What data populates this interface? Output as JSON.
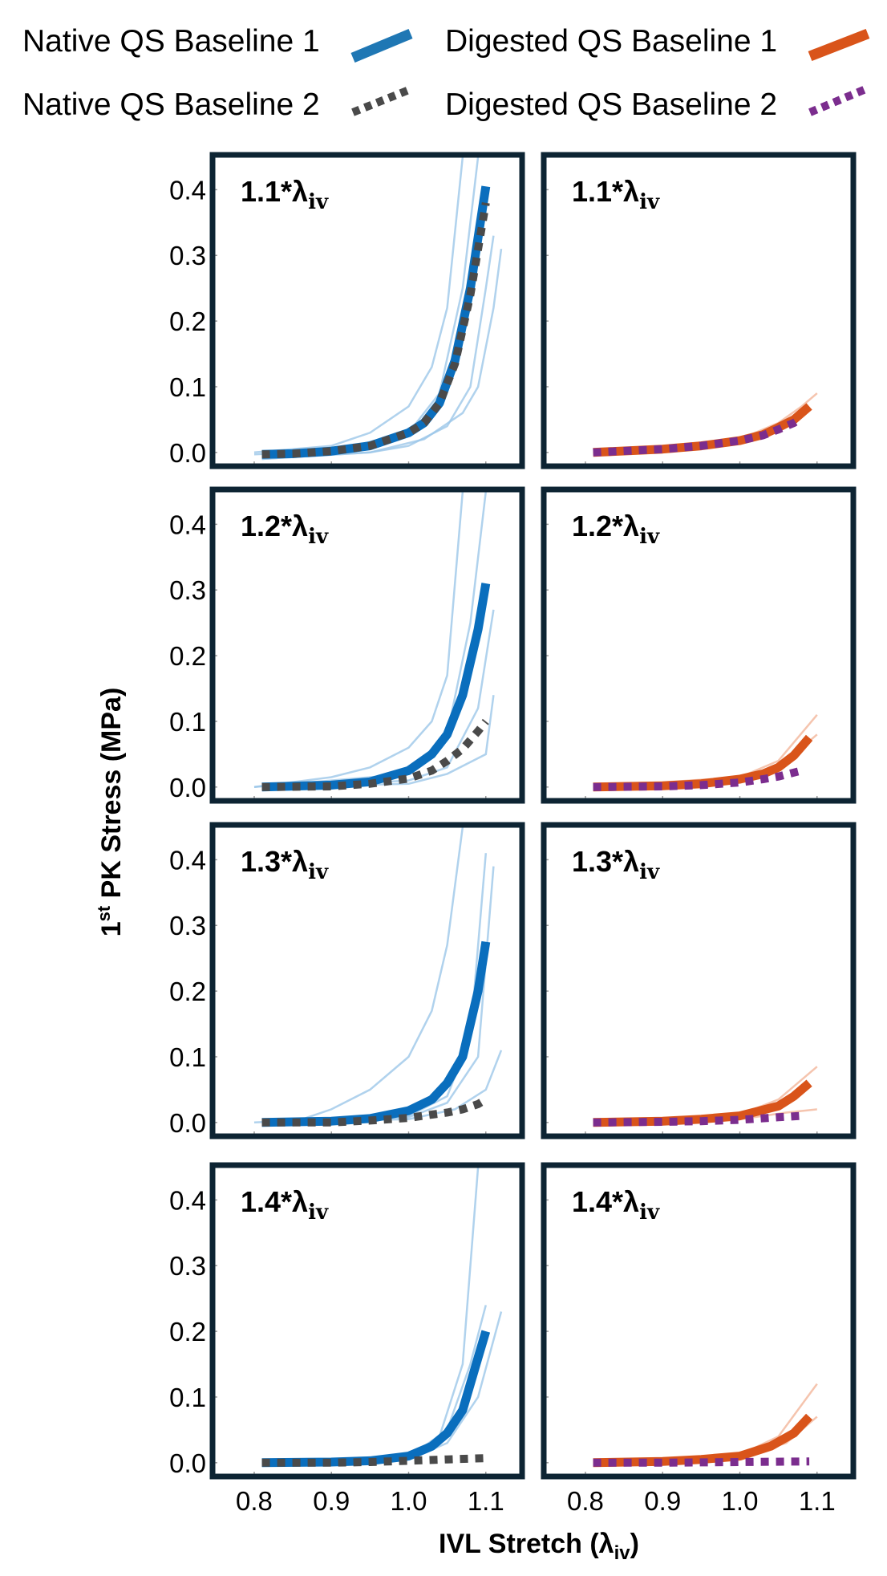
{
  "chart_data": {
    "type": "line",
    "layout": "4 rows x 2 columns of panels",
    "legend": {
      "placement": "top",
      "entries": [
        {
          "name": "Native QS Baseline 1",
          "color": "#1f77b4",
          "style": "solid"
        },
        {
          "name": "Digested QS Baseline 1",
          "color": "#d9541a",
          "style": "solid"
        },
        {
          "name": "Native QS Baseline 2",
          "color": "#4a4a4a",
          "style": "dotted"
        },
        {
          "name": "Digested QS Baseline 2",
          "color": "#7b2d8e",
          "style": "dotted"
        }
      ]
    },
    "xlabel": {
      "main": "IVL Stretch (λ",
      "sub": "iv",
      "close": ")"
    },
    "ylabel": {
      "pre": "1",
      "sup": "st",
      "main": " PK Stress (MPa)"
    },
    "xlim": [
      0.746,
      1.147
    ],
    "ylim": [
      -0.021,
      0.453
    ],
    "xticks": [
      "0.8",
      "0.9",
      "1.0",
      "1.1"
    ],
    "yticks": [
      "0.0",
      "0.1",
      "0.2",
      "0.3",
      "0.4"
    ],
    "grid": false,
    "colors": {
      "native1": "#0a6ebd",
      "native2": "#4a4a4a",
      "digested1": "#d9541a",
      "digested2": "#7b2d8e",
      "native_specimen": "#9cc7e8",
      "digested_specimen": "#f2b59a",
      "frame": "#0d2433"
    },
    "panels": [
      {
        "label": "1.1*λ",
        "label_sub": "iv",
        "group": "native",
        "series1": [
          [
            0.81,
            -0.003
          ],
          [
            0.85,
            -0.002
          ],
          [
            0.9,
            0.002
          ],
          [
            0.95,
            0.01
          ],
          [
            1.0,
            0.03
          ],
          [
            1.02,
            0.045
          ],
          [
            1.04,
            0.075
          ],
          [
            1.06,
            0.14
          ],
          [
            1.08,
            0.25
          ],
          [
            1.1,
            0.405
          ]
        ],
        "series2": [
          [
            0.81,
            -0.003
          ],
          [
            0.85,
            -0.002
          ],
          [
            0.9,
            0.002
          ],
          [
            0.95,
            0.01
          ],
          [
            1.0,
            0.03
          ],
          [
            1.02,
            0.045
          ],
          [
            1.04,
            0.075
          ],
          [
            1.06,
            0.135
          ],
          [
            1.08,
            0.24
          ],
          [
            1.1,
            0.38
          ]
        ],
        "specimens": [
          [
            [
              0.8,
              0
            ],
            [
              0.9,
              0.01
            ],
            [
              0.95,
              0.03
            ],
            [
              1.0,
              0.07
            ],
            [
              1.03,
              0.13
            ],
            [
              1.05,
              0.22
            ],
            [
              1.07,
              0.45
            ]
          ],
          [
            [
              0.8,
              -0.003
            ],
            [
              0.9,
              0.002
            ],
            [
              1.0,
              0.03
            ],
            [
              1.04,
              0.09
            ],
            [
              1.07,
              0.25
            ],
            [
              1.09,
              0.45
            ]
          ],
          [
            [
              0.81,
              -0.01
            ],
            [
              0.95,
              0
            ],
            [
              1.0,
              0.01
            ],
            [
              1.05,
              0.04
            ],
            [
              1.08,
              0.1
            ],
            [
              1.1,
              0.25
            ],
            [
              1.11,
              0.33
            ]
          ],
          [
            [
              0.81,
              -0.01
            ],
            [
              0.95,
              0
            ],
            [
              1.02,
              0.02
            ],
            [
              1.07,
              0.06
            ],
            [
              1.09,
              0.1
            ],
            [
              1.11,
              0.22
            ],
            [
              1.12,
              0.31
            ]
          ]
        ]
      },
      {
        "label": "1.1*λ",
        "label_sub": "iv",
        "group": "digested",
        "series1": [
          [
            0.81,
            0
          ],
          [
            0.9,
            0.005
          ],
          [
            0.95,
            0.01
          ],
          [
            1.0,
            0.018
          ],
          [
            1.03,
            0.027
          ],
          [
            1.05,
            0.038
          ],
          [
            1.07,
            0.05
          ],
          [
            1.09,
            0.07
          ]
        ],
        "series2": [
          [
            0.81,
            0
          ],
          [
            0.9,
            0.005
          ],
          [
            0.95,
            0.01
          ],
          [
            1.0,
            0.018
          ],
          [
            1.03,
            0.026
          ],
          [
            1.05,
            0.035
          ],
          [
            1.07,
            0.045
          ],
          [
            1.08,
            0.052
          ]
        ],
        "specimens": [
          [
            [
              0.81,
              0
            ],
            [
              1.0,
              0.02
            ],
            [
              1.05,
              0.045
            ],
            [
              1.08,
              0.07
            ],
            [
              1.1,
              0.09
            ]
          ]
        ]
      },
      {
        "label": "1.2*λ",
        "label_sub": "iv",
        "group": "native",
        "series1": [
          [
            0.81,
            0
          ],
          [
            0.9,
            0.003
          ],
          [
            0.95,
            0.008
          ],
          [
            1.0,
            0.025
          ],
          [
            1.03,
            0.05
          ],
          [
            1.05,
            0.08
          ],
          [
            1.07,
            0.14
          ],
          [
            1.09,
            0.24
          ],
          [
            1.1,
            0.31
          ]
        ],
        "series2": [
          [
            0.81,
            0
          ],
          [
            0.9,
            0.001
          ],
          [
            0.95,
            0.005
          ],
          [
            1.0,
            0.013
          ],
          [
            1.03,
            0.025
          ],
          [
            1.05,
            0.04
          ],
          [
            1.07,
            0.058
          ],
          [
            1.09,
            0.085
          ],
          [
            1.1,
            0.1
          ]
        ],
        "specimens": [
          [
            [
              0.8,
              0
            ],
            [
              0.9,
              0.015
            ],
            [
              0.95,
              0.03
            ],
            [
              1.0,
              0.06
            ],
            [
              1.03,
              0.1
            ],
            [
              1.05,
              0.17
            ],
            [
              1.07,
              0.45
            ]
          ],
          [
            [
              0.8,
              0
            ],
            [
              1.0,
              0.02
            ],
            [
              1.05,
              0.08
            ],
            [
              1.08,
              0.25
            ],
            [
              1.1,
              0.45
            ]
          ],
          [
            [
              0.81,
              -0.003
            ],
            [
              1.0,
              0.01
            ],
            [
              1.05,
              0.03
            ],
            [
              1.09,
              0.12
            ],
            [
              1.11,
              0.27
            ]
          ],
          [
            [
              0.81,
              0
            ],
            [
              1.0,
              0.005
            ],
            [
              1.05,
              0.02
            ],
            [
              1.1,
              0.05
            ],
            [
              1.11,
              0.14
            ]
          ]
        ]
      },
      {
        "label": "1.2*λ",
        "label_sub": "iv",
        "group": "digested",
        "series1": [
          [
            0.81,
            0
          ],
          [
            0.9,
            0.002
          ],
          [
            0.95,
            0.005
          ],
          [
            1.0,
            0.012
          ],
          [
            1.03,
            0.02
          ],
          [
            1.05,
            0.03
          ],
          [
            1.07,
            0.048
          ],
          [
            1.09,
            0.075
          ]
        ],
        "series2": [
          [
            0.81,
            0
          ],
          [
            0.9,
            0.001
          ],
          [
            0.95,
            0.003
          ],
          [
            1.0,
            0.007
          ],
          [
            1.03,
            0.012
          ],
          [
            1.05,
            0.016
          ],
          [
            1.08,
            0.025
          ]
        ],
        "specimens": [
          [
            [
              0.81,
              0
            ],
            [
              1.0,
              0.015
            ],
            [
              1.05,
              0.04
            ],
            [
              1.1,
              0.11
            ]
          ],
          [
            [
              0.81,
              0
            ],
            [
              1.0,
              0.01
            ],
            [
              1.05,
              0.03
            ],
            [
              1.1,
              0.08
            ]
          ]
        ]
      },
      {
        "label": "1.3*λ",
        "label_sub": "iv",
        "group": "native",
        "series1": [
          [
            0.81,
            0
          ],
          [
            0.9,
            0.002
          ],
          [
            0.95,
            0.006
          ],
          [
            1.0,
            0.018
          ],
          [
            1.03,
            0.035
          ],
          [
            1.05,
            0.06
          ],
          [
            1.07,
            0.1
          ],
          [
            1.09,
            0.2
          ],
          [
            1.1,
            0.275
          ]
        ],
        "series2": [
          [
            0.81,
            0
          ],
          [
            0.9,
            0
          ],
          [
            0.95,
            0.003
          ],
          [
            1.0,
            0.007
          ],
          [
            1.03,
            0.012
          ],
          [
            1.05,
            0.015
          ],
          [
            1.07,
            0.02
          ],
          [
            1.09,
            0.028
          ],
          [
            1.1,
            0.035
          ]
        ],
        "specimens": [
          [
            [
              0.85,
              0
            ],
            [
              0.9,
              0.02
            ],
            [
              0.95,
              0.05
            ],
            [
              1.0,
              0.1
            ],
            [
              1.03,
              0.17
            ],
            [
              1.05,
              0.27
            ],
            [
              1.07,
              0.45
            ]
          ],
          [
            [
              0.8,
              0
            ],
            [
              1.0,
              0.01
            ],
            [
              1.05,
              0.04
            ],
            [
              1.08,
              0.13
            ],
            [
              1.1,
              0.41
            ]
          ],
          [
            [
              0.81,
              0
            ],
            [
              1.0,
              0.008
            ],
            [
              1.05,
              0.03
            ],
            [
              1.09,
              0.1
            ],
            [
              1.11,
              0.39
            ]
          ],
          [
            [
              0.81,
              0
            ],
            [
              1.0,
              0.005
            ],
            [
              1.06,
              0.02
            ],
            [
              1.1,
              0.05
            ],
            [
              1.12,
              0.11
            ]
          ]
        ]
      },
      {
        "label": "1.3*λ",
        "label_sub": "iv",
        "group": "digested",
        "series1": [
          [
            0.81,
            0
          ],
          [
            0.9,
            0.002
          ],
          [
            0.95,
            0.005
          ],
          [
            1.0,
            0.01
          ],
          [
            1.05,
            0.025
          ],
          [
            1.07,
            0.04
          ],
          [
            1.09,
            0.06
          ]
        ],
        "series2": [
          [
            0.81,
            0
          ],
          [
            0.9,
            0.001
          ],
          [
            0.95,
            0.002
          ],
          [
            1.0,
            0.004
          ],
          [
            1.05,
            0.008
          ],
          [
            1.08,
            0.01
          ]
        ],
        "specimens": [
          [
            [
              0.81,
              0
            ],
            [
              1.0,
              0.012
            ],
            [
              1.05,
              0.035
            ],
            [
              1.1,
              0.085
            ]
          ],
          [
            [
              0.81,
              0
            ],
            [
              1.0,
              0.005
            ],
            [
              1.06,
              0.015
            ],
            [
              1.1,
              0.02
            ]
          ]
        ]
      },
      {
        "label": "1.4*λ",
        "label_sub": "iv",
        "group": "native",
        "series1": [
          [
            0.81,
            0
          ],
          [
            0.9,
            0.001
          ],
          [
            0.95,
            0.003
          ],
          [
            1.0,
            0.01
          ],
          [
            1.03,
            0.025
          ],
          [
            1.05,
            0.045
          ],
          [
            1.07,
            0.08
          ],
          [
            1.09,
            0.16
          ],
          [
            1.1,
            0.2
          ]
        ],
        "series2": [
          [
            0.81,
            0
          ],
          [
            0.9,
            0
          ],
          [
            0.95,
            0.001
          ],
          [
            1.0,
            0.003
          ],
          [
            1.05,
            0.005
          ],
          [
            1.1,
            0.007
          ]
        ],
        "specimens": [
          [
            [
              0.81,
              0
            ],
            [
              1.0,
              0.01
            ],
            [
              1.04,
              0.04
            ],
            [
              1.07,
              0.15
            ],
            [
              1.09,
              0.45
            ]
          ],
          [
            [
              0.81,
              0
            ],
            [
              1.0,
              0.008
            ],
            [
              1.05,
              0.05
            ],
            [
              1.08,
              0.15
            ],
            [
              1.1,
              0.24
            ]
          ],
          [
            [
              0.81,
              0
            ],
            [
              1.0,
              0.005
            ],
            [
              1.05,
              0.03
            ],
            [
              1.09,
              0.1
            ],
            [
              1.12,
              0.23
            ]
          ]
        ]
      },
      {
        "label": "1.4*λ",
        "label_sub": "iv",
        "group": "digested",
        "series1": [
          [
            0.81,
            0
          ],
          [
            0.9,
            0.002
          ],
          [
            0.95,
            0.005
          ],
          [
            1.0,
            0.01
          ],
          [
            1.04,
            0.025
          ],
          [
            1.07,
            0.045
          ],
          [
            1.09,
            0.07
          ]
        ],
        "series2": [
          [
            0.81,
            0
          ],
          [
            0.9,
            0
          ],
          [
            1.0,
            0.001
          ],
          [
            1.09,
            0.002
          ]
        ],
        "specimens": [
          [
            [
              0.81,
              0
            ],
            [
              1.0,
              0.012
            ],
            [
              1.05,
              0.04
            ],
            [
              1.1,
              0.12
            ]
          ],
          [
            [
              0.81,
              0
            ],
            [
              1.0,
              0.008
            ],
            [
              1.06,
              0.03
            ],
            [
              1.1,
              0.07
            ]
          ]
        ]
      }
    ]
  }
}
